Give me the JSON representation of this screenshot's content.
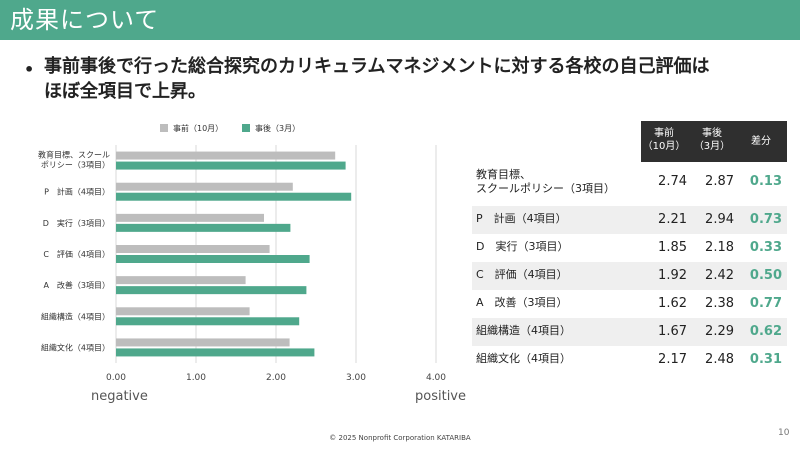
{
  "header": {
    "title": "成果について"
  },
  "bullet": {
    "dot": "•",
    "text": "事前事後で行った総合探究のカリキュラムマネジメントに対する各校の自己評価は\nほぼ全項目で上昇。"
  },
  "colors": {
    "accent": "#4fa88c",
    "before": "#bdbdbd",
    "after": "#4fa88c",
    "header_bg": "#4fa88c",
    "table_head": "#2f2f2f"
  },
  "chart_data": {
    "type": "bar",
    "orientation": "horizontal",
    "categories": [
      "教育目標、スクール\nポリシー（3項目）",
      "P　計画（4項目）",
      "D　実行（3項目）",
      "C　評価（4項目）",
      "A　改善（3項目）",
      "組織構造（4項目）",
      "組織文化（4項目）"
    ],
    "series": [
      {
        "name": "事前（10月）",
        "values": [
          2.74,
          2.21,
          1.85,
          1.92,
          1.62,
          1.67,
          2.17
        ]
      },
      {
        "name": "事後（3月）",
        "values": [
          2.87,
          2.94,
          2.18,
          2.42,
          2.38,
          2.29,
          2.48
        ]
      }
    ],
    "xlim": [
      0,
      4
    ],
    "xticks": [
      "0.00",
      "1.00",
      "2.00",
      "3.00",
      "4.00"
    ],
    "grid": true,
    "legend": "top",
    "annotations": {
      "negative": "negative",
      "positive": "positive"
    }
  },
  "table": {
    "headers": [
      "事前\n（10月）",
      "事後\n（3月）",
      "差分"
    ],
    "rows": [
      {
        "label": "教育目標、\nスクールポリシー（3項目）",
        "before": "2.74",
        "after": "2.87",
        "diff": "0.13"
      },
      {
        "label": "P　計画（4項目）",
        "before": "2.21",
        "after": "2.94",
        "diff": "0.73"
      },
      {
        "label": "D　実行（3項目）",
        "before": "1.85",
        "after": "2.18",
        "diff": "0.33"
      },
      {
        "label": "C　評価（4項目）",
        "before": "1.92",
        "after": "2.42",
        "diff": "0.50"
      },
      {
        "label": "A　改善（3項目）",
        "before": "1.62",
        "after": "2.38",
        "diff": "0.77"
      },
      {
        "label": "組織構造（4項目）",
        "before": "1.67",
        "after": "2.29",
        "diff": "0.62"
      },
      {
        "label": "組織文化（4項目）",
        "before": "2.17",
        "after": "2.48",
        "diff": "0.31"
      }
    ]
  },
  "footer": {
    "copyright": "© 2025 Nonprofit Corporation KATARIBA",
    "page_number": "10"
  }
}
